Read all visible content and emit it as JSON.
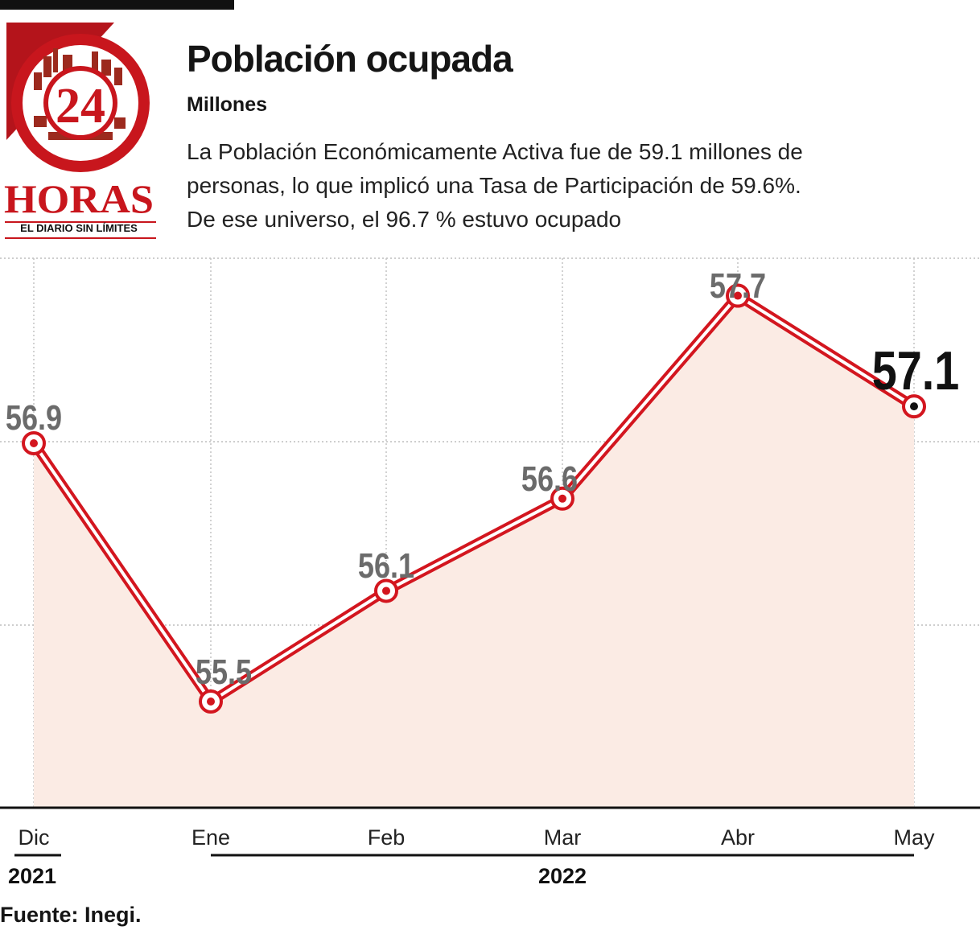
{
  "header": {
    "title": "Población ocupada",
    "subtitle": "Millones",
    "description_lines": [
      "La Población Económicamente Activa fue de 59.1 millones de",
      "personas, lo que implicó una Tasa de Participación de 59.6%.",
      "De ese universo, el 96.7 % estuvo ocupado"
    ]
  },
  "logo": {
    "number": "24",
    "name": "HORAS",
    "tagline": "EL DIARIO SIN LÍMITES",
    "brand_color": "#c8161d"
  },
  "chart_data": {
    "type": "area",
    "categories": [
      "Dic",
      "Ene",
      "Feb",
      "Mar",
      "Abr",
      "May"
    ],
    "values": [
      56.9,
      55.5,
      56.1,
      56.6,
      57.7,
      57.1
    ],
    "value_labels": [
      "56.9",
      "55.5",
      "56.1",
      "56.6",
      "57.7",
      "57.1"
    ],
    "highlight_index": 5,
    "year_groups": [
      {
        "label": "2021",
        "start": 0,
        "end": 0
      },
      {
        "label": "2022",
        "start": 1,
        "end": 5
      }
    ],
    "line_color": "#d3161f",
    "fill_color": "#fbebe4",
    "grid": true
  },
  "footer": {
    "source": "Fuente: Inegi."
  }
}
